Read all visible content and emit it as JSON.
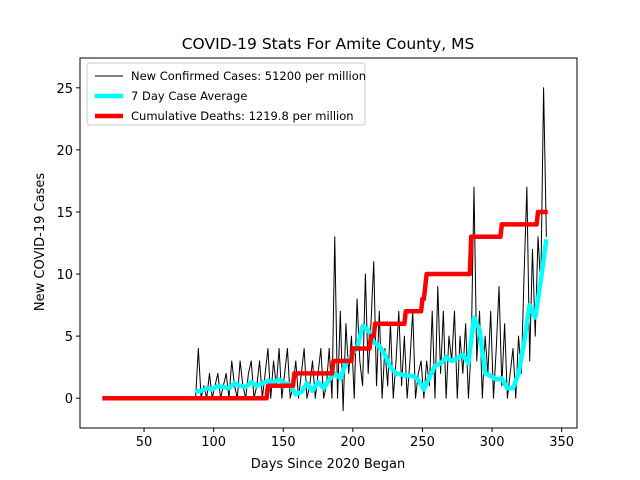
{
  "chart_data": {
    "type": "line",
    "title": "COVID-19 Stats For Amite County, MS",
    "xlabel": "Days Since 2020 Began",
    "ylabel": "New COVID-19 Cases",
    "xlim": [
      4,
      361
    ],
    "ylim": [
      -2.4,
      27.4
    ],
    "xticks": [
      50,
      100,
      150,
      200,
      250,
      300,
      350
    ],
    "yticks": [
      0,
      5,
      10,
      15,
      20,
      25
    ],
    "legend": "upper left",
    "series": [
      {
        "name": "New Confirmed Cases: 51200 per million",
        "color": "#000000",
        "width": 1,
        "x": [
          87,
          89,
          91,
          93,
          95,
          97,
          99,
          101,
          103,
          105,
          107,
          109,
          111,
          113,
          115,
          117,
          119,
          121,
          123,
          125,
          127,
          129,
          131,
          133,
          135,
          137,
          139,
          141,
          143,
          145,
          147,
          149,
          151,
          153,
          155,
          157,
          159,
          161,
          163,
          165,
          167,
          169,
          171,
          173,
          175,
          177,
          179,
          181,
          183,
          185,
          187,
          189,
          191,
          193,
          195,
          197,
          199,
          201,
          203,
          205,
          207,
          209,
          211,
          213,
          215,
          217,
          219,
          221,
          223,
          225,
          227,
          229,
          231,
          233,
          235,
          237,
          239,
          241,
          243,
          245,
          247,
          249,
          251,
          253,
          255,
          257,
          259,
          261,
          263,
          265,
          267,
          269,
          271,
          273,
          275,
          277,
          279,
          281,
          283,
          285,
          287,
          289,
          291,
          293,
          295,
          297,
          299,
          301,
          303,
          305,
          307,
          309,
          311,
          313,
          315,
          317,
          319,
          321,
          323,
          325,
          327,
          329,
          331,
          333,
          335,
          337,
          339
        ],
        "values": [
          0,
          4,
          0,
          1,
          0,
          2,
          0,
          1,
          2,
          0,
          1,
          2,
          0,
          3,
          1,
          0,
          3,
          1,
          0,
          2,
          3,
          0,
          1,
          3,
          0,
          2,
          4,
          0,
          3,
          1,
          4,
          0,
          2,
          4,
          0,
          1,
          3,
          0,
          2,
          4,
          0,
          1,
          3,
          0,
          2,
          4,
          0,
          1,
          4,
          0,
          13,
          0,
          7,
          -1,
          6,
          2,
          5,
          0,
          8,
          3,
          1,
          10,
          2,
          6,
          11,
          1,
          7,
          0,
          4,
          1,
          6,
          0,
          3,
          7,
          1,
          5,
          0,
          3,
          7,
          0,
          2,
          3,
          0,
          3,
          1,
          7,
          0,
          9,
          2,
          7,
          0,
          5,
          3,
          7,
          0,
          5,
          2,
          6,
          0,
          4,
          17,
          3,
          7,
          0,
          5,
          2,
          7,
          0,
          4,
          9,
          1,
          6,
          0,
          2,
          4,
          0,
          5,
          2,
          10,
          17,
          3,
          12,
          5,
          13,
          9,
          25,
          13
        ]
      },
      {
        "name": "7 Day Case Average",
        "color": "#00ffff",
        "width": 4.5,
        "x": [
          87,
          91,
          95,
          99,
          103,
          107,
          111,
          115,
          119,
          123,
          127,
          131,
          135,
          139,
          143,
          147,
          151,
          155,
          159,
          163,
          167,
          171,
          175,
          179,
          183,
          187,
          191,
          195,
          199,
          203,
          207,
          211,
          215,
          219,
          223,
          227,
          231,
          235,
          239,
          243,
          247,
          251,
          255,
          259,
          263,
          267,
          271,
          275,
          279,
          283,
          287,
          291,
          295,
          299,
          303,
          307,
          311,
          315,
          319,
          323,
          327,
          331,
          335,
          339
        ],
        "values": [
          0.5,
          0.6,
          0.8,
          0.7,
          1.0,
          0.9,
          0.8,
          1.2,
          1.0,
          0.9,
          1.3,
          1.0,
          1.2,
          1.4,
          1.3,
          1.5,
          1.2,
          1.1,
          0.3,
          0.5,
          1.2,
          0.6,
          1.3,
          0.8,
          1.5,
          2.0,
          1.6,
          2.8,
          3.5,
          4.0,
          5.8,
          5.5,
          4.5,
          4.2,
          3.5,
          2.5,
          2.0,
          1.9,
          1.8,
          1.8,
          1.5,
          0.7,
          1.7,
          2.6,
          2.8,
          3.3,
          3.0,
          3.2,
          3.5,
          2.8,
          6.5,
          5.5,
          2.0,
          1.8,
          1.5,
          1.6,
          0.8,
          0.8,
          2.0,
          4.5,
          7.5,
          6.5,
          9.5,
          12.8
        ]
      },
      {
        "name": "Cumulative Deaths: 1219.8 per million",
        "color": "#ff0000",
        "width": 4.5,
        "x": [
          20,
          138,
          139,
          157,
          158,
          185,
          186,
          199,
          200,
          212,
          213,
          215,
          216,
          237,
          238,
          249,
          250,
          251,
          252,
          253,
          284,
          285,
          306,
          307,
          332,
          333,
          340
        ],
        "values": [
          0,
          0,
          1,
          1,
          2,
          2,
          3,
          3,
          4,
          4,
          5,
          5,
          6,
          6,
          7,
          7,
          8,
          8,
          9,
          10,
          10,
          13,
          13,
          14,
          14,
          15,
          15
        ]
      }
    ]
  }
}
